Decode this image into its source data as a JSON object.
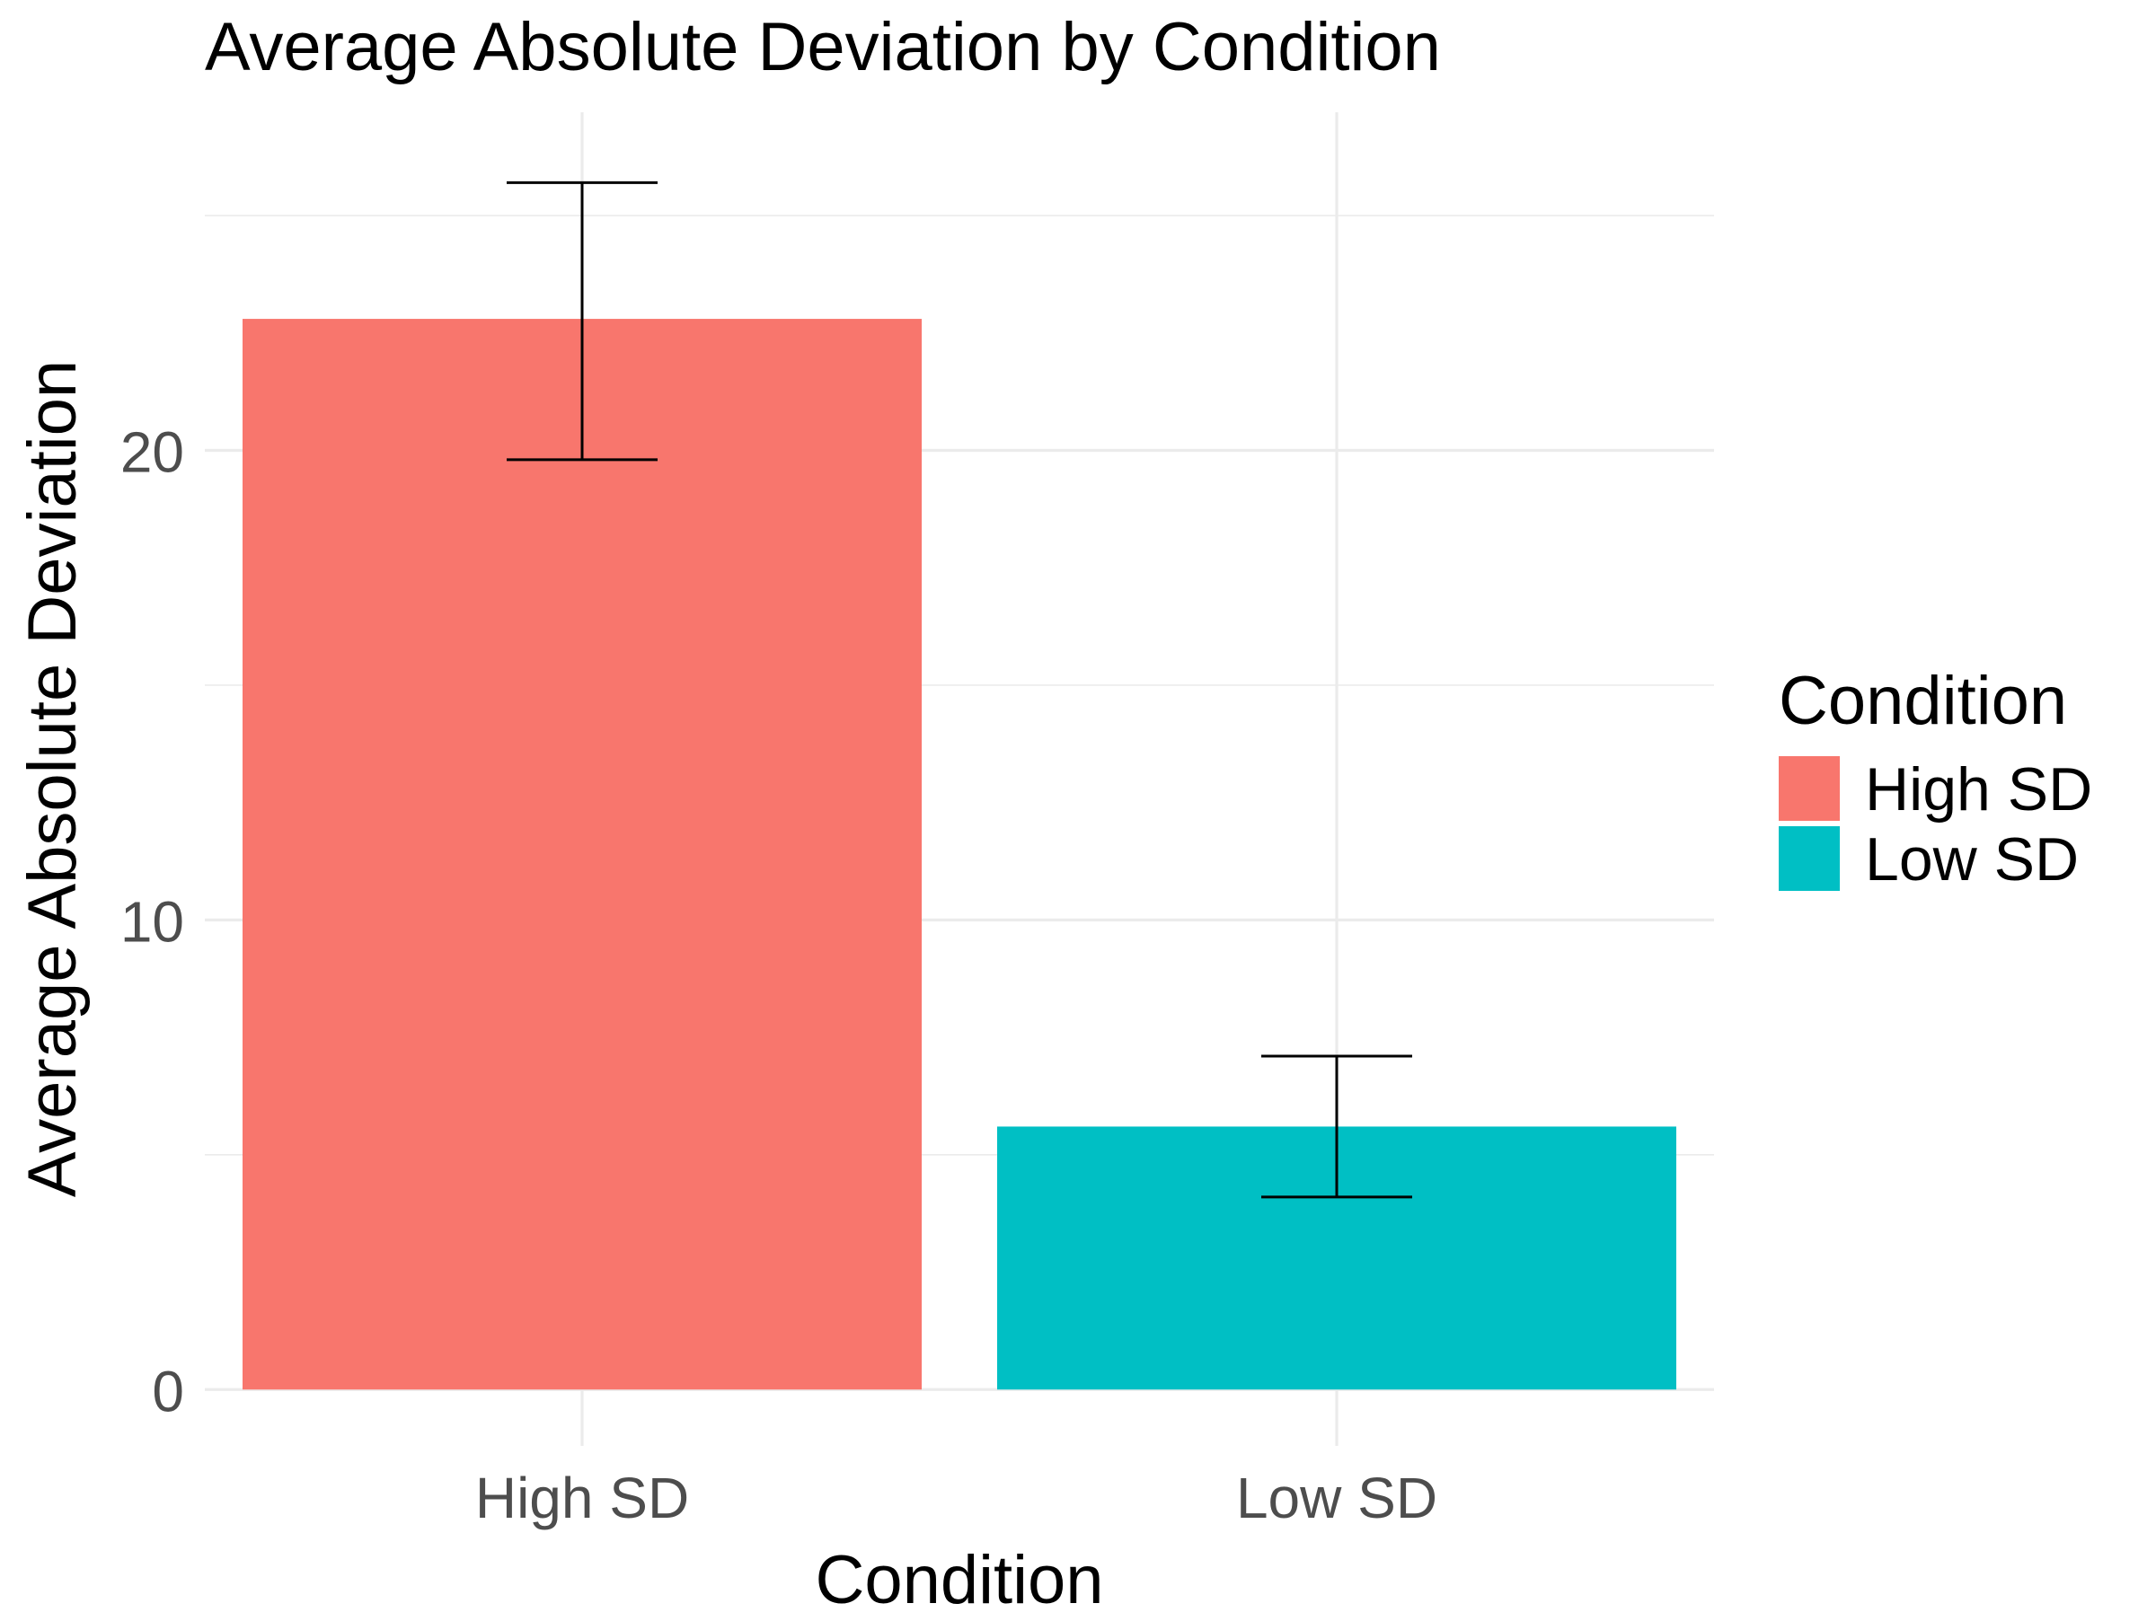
{
  "chart_data": {
    "type": "bar",
    "title": "Average Absolute Deviation by Condition",
    "xlabel": "Condition",
    "ylabel": "Average Absolute Deviation",
    "categories": [
      "High SD",
      "Low SD"
    ],
    "values": [
      22.8,
      5.6
    ],
    "error_bars": [
      {
        "lower": 19.8,
        "upper": 25.7
      },
      {
        "lower": 4.1,
        "upper": 7.1
      }
    ],
    "colors": [
      "#F8766D",
      "#00BFC4"
    ],
    "ylim": [
      -1.2,
      27.2
    ],
    "y_ticks": [
      0,
      10,
      20
    ],
    "y_tick_labels": [
      "0",
      "10",
      "20"
    ],
    "y_minor_ticks": [
      5,
      15,
      25
    ],
    "grid": true,
    "legend": {
      "title": "Condition",
      "position": "right",
      "items": [
        {
          "label": "High SD",
          "color": "#F8766D"
        },
        {
          "label": "Low SD",
          "color": "#00BFC4"
        }
      ]
    }
  }
}
